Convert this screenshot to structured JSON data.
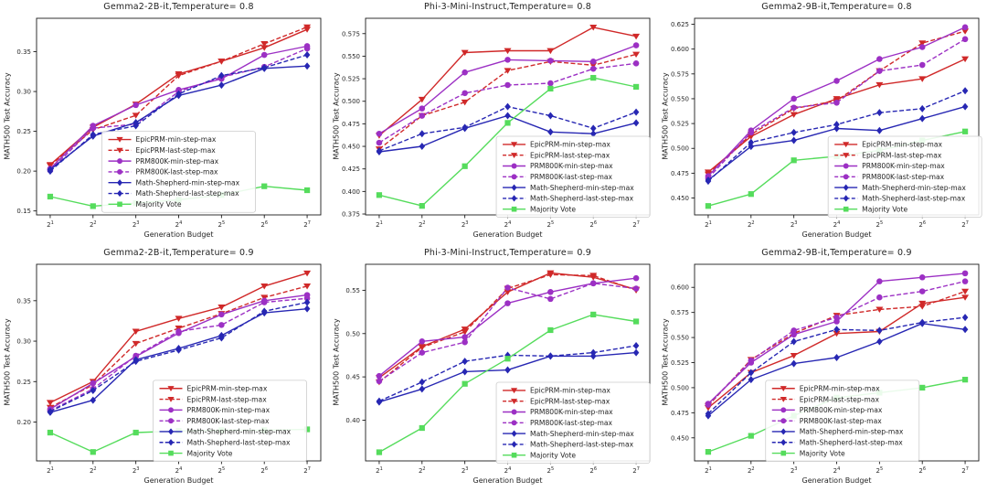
{
  "figure": {
    "xlabel": "Generation Budget",
    "ylabel": "MATH500 Test Accuracy",
    "x_tick_base": "2",
    "x_exponents": [
      1,
      2,
      3,
      4,
      5,
      6,
      7
    ],
    "colors": {
      "red": "#d02929",
      "purple": "#9c30c4",
      "blue": "#2727b3",
      "green": "#55dc5c",
      "axis": "#1a1a1a",
      "text": "#262626",
      "legend_border": "#cccccc",
      "background": "#ffffff"
    },
    "series_styles": [
      {
        "name": "EpicPRM-min-step-max",
        "color": "red",
        "dash": "solid",
        "marker": "triangle-down"
      },
      {
        "name": "EpicPRM-last-step-max",
        "color": "red",
        "dash": "dashed",
        "marker": "triangle-down"
      },
      {
        "name": "PRM800K-min-step-max",
        "color": "purple",
        "dash": "solid",
        "marker": "circle"
      },
      {
        "name": "PRM800K-last-step-max",
        "color": "purple",
        "dash": "dashed",
        "marker": "circle"
      },
      {
        "name": "Math-Shepherd-min-step-max",
        "color": "blue",
        "dash": "solid",
        "marker": "diamond"
      },
      {
        "name": "Math-Shepherd-last-step-max",
        "color": "blue",
        "dash": "dashed",
        "marker": "diamond"
      },
      {
        "name": "Majority Vote",
        "color": "green",
        "dash": "solid",
        "marker": "square"
      }
    ]
  },
  "chart_data": [
    {
      "type": "line",
      "title": "Gemma2-2B-it,Temperature= 0.8",
      "xlabel": "Generation Budget",
      "ylabel": "MATH500 Test Accuracy",
      "x": [
        2,
        4,
        8,
        16,
        32,
        64,
        128
      ],
      "ylim": [
        0.145,
        0.392
      ],
      "yticks": [
        0.15,
        0.2,
        0.25,
        0.3,
        0.35
      ],
      "ydecimals": 2,
      "legend_pos": {
        "x": 0.23,
        "y": 0.575
      },
      "series_values": [
        [
          0.208,
          0.255,
          0.284,
          0.322,
          0.338,
          0.355,
          0.378
        ],
        [
          0.207,
          0.252,
          0.27,
          0.32,
          0.338,
          0.36,
          0.381
        ],
        [
          0.203,
          0.257,
          0.283,
          0.302,
          0.316,
          0.346,
          0.357
        ],
        [
          0.201,
          0.254,
          0.259,
          0.3,
          0.318,
          0.331,
          0.354
        ],
        [
          0.202,
          0.244,
          0.261,
          0.295,
          0.308,
          0.329,
          0.332
        ],
        [
          0.2,
          0.246,
          0.257,
          0.297,
          0.32,
          0.33,
          0.346
        ],
        [
          0.168,
          0.156,
          0.16,
          0.164,
          0.17,
          0.181,
          0.176
        ]
      ]
    },
    {
      "type": "line",
      "title": "Phi-3-Mini-Instruct,Temperature= 0.8",
      "xlabel": "Generation Budget",
      "ylabel": "MATH500 Test Accuracy",
      "x": [
        2,
        4,
        8,
        16,
        32,
        64,
        128
      ],
      "ylim": [
        0.374,
        0.592
      ],
      "yticks": [
        0.375,
        0.4,
        0.425,
        0.45,
        0.475,
        0.5,
        0.525,
        0.55,
        0.575
      ],
      "ydecimals": 3,
      "legend_pos": {
        "x": 0.46,
        "y": 0.6
      },
      "series_values": [
        [
          0.462,
          0.502,
          0.554,
          0.556,
          0.556,
          0.582,
          0.572
        ],
        [
          0.447,
          0.484,
          0.499,
          0.534,
          0.544,
          0.54,
          0.552
        ],
        [
          0.464,
          0.492,
          0.532,
          0.546,
          0.545,
          0.544,
          0.562
        ],
        [
          0.454,
          0.484,
          0.509,
          0.518,
          0.52,
          0.536,
          0.542
        ],
        [
          0.444,
          0.45,
          0.47,
          0.484,
          0.466,
          0.464,
          0.476
        ],
        [
          0.445,
          0.464,
          0.471,
          0.494,
          0.484,
          0.47,
          0.488
        ],
        [
          0.396,
          0.384,
          0.428,
          0.476,
          0.514,
          0.526,
          0.516
        ]
      ]
    },
    {
      "type": "line",
      "title": "Gemma2-9B-it,Temperature= 0.8",
      "xlabel": "Generation Budget",
      "ylabel": "MATH500 Test Accuracy",
      "x": [
        2,
        4,
        8,
        16,
        32,
        64,
        128
      ],
      "ylim": [
        0.433,
        0.631
      ],
      "yticks": [
        0.45,
        0.475,
        0.5,
        0.525,
        0.55,
        0.575,
        0.6,
        0.625
      ],
      "ydecimals": 3,
      "legend_pos": {
        "x": 0.47,
        "y": 0.6
      },
      "series_values": [
        [
          0.476,
          0.512,
          0.534,
          0.55,
          0.564,
          0.57,
          0.59
        ],
        [
          0.474,
          0.514,
          0.54,
          0.548,
          0.578,
          0.606,
          0.618
        ],
        [
          0.472,
          0.518,
          0.55,
          0.568,
          0.59,
          0.602,
          0.622
        ],
        [
          0.47,
          0.516,
          0.541,
          0.546,
          0.578,
          0.584,
          0.61
        ],
        [
          0.468,
          0.502,
          0.508,
          0.52,
          0.518,
          0.53,
          0.542
        ],
        [
          0.467,
          0.506,
          0.516,
          0.524,
          0.536,
          0.54,
          0.558
        ],
        [
          0.442,
          0.454,
          0.488,
          0.492,
          0.498,
          0.508,
          0.517
        ]
      ]
    },
    {
      "type": "line",
      "title": "Gemma2-2B-it,Temperature= 0.9",
      "xlabel": "Generation Budget",
      "ylabel": "MATH500 Test Accuracy",
      "x": [
        2,
        4,
        8,
        16,
        32,
        64,
        128
      ],
      "ylim": [
        0.152,
        0.395
      ],
      "yticks": [
        0.2,
        0.25,
        0.3,
        0.35
      ],
      "ydecimals": 2,
      "legend_pos": {
        "x": 0.41,
        "y": 0.59
      },
      "series_values": [
        [
          0.224,
          0.25,
          0.312,
          0.328,
          0.342,
          0.368,
          0.384
        ],
        [
          0.218,
          0.246,
          0.297,
          0.316,
          0.334,
          0.354,
          0.368
        ],
        [
          0.216,
          0.248,
          0.281,
          0.31,
          0.333,
          0.35,
          0.357
        ],
        [
          0.214,
          0.241,
          0.282,
          0.312,
          0.32,
          0.348,
          0.353
        ],
        [
          0.212,
          0.227,
          0.277,
          0.291,
          0.307,
          0.335,
          0.34
        ],
        [
          0.213,
          0.239,
          0.275,
          0.289,
          0.304,
          0.337,
          0.348
        ],
        [
          0.187,
          0.163,
          0.187,
          0.189,
          0.19,
          0.19,
          0.191
        ]
      ]
    },
    {
      "type": "line",
      "title": "Phi-3-Mini-Instruct,Temperature= 0.9",
      "xlabel": "Generation Budget",
      "ylabel": "MATH500 Test Accuracy",
      "x": [
        2,
        4,
        8,
        16,
        32,
        64,
        128
      ],
      "ylim": [
        0.353,
        0.58
      ],
      "yticks": [
        0.4,
        0.45,
        0.5,
        0.55
      ],
      "ydecimals": 2,
      "legend_pos": {
        "x": 0.46,
        "y": 0.6
      },
      "series_values": [
        [
          0.449,
          0.485,
          0.505,
          0.548,
          0.57,
          0.565,
          0.551
        ],
        [
          0.444,
          0.484,
          0.502,
          0.552,
          0.568,
          0.567,
          0.55
        ],
        [
          0.451,
          0.491,
          0.496,
          0.535,
          0.548,
          0.558,
          0.564
        ],
        [
          0.445,
          0.478,
          0.49,
          0.553,
          0.54,
          0.558,
          0.552
        ],
        [
          0.421,
          0.436,
          0.456,
          0.458,
          0.474,
          0.474,
          0.478
        ],
        [
          0.422,
          0.444,
          0.468,
          0.475,
          0.474,
          0.478,
          0.486
        ],
        [
          0.363,
          0.391,
          0.442,
          0.471,
          0.504,
          0.522,
          0.514
        ]
      ]
    },
    {
      "type": "line",
      "title": "Gemma2-9B-it,Temperature= 0.9",
      "xlabel": "Generation Budget",
      "ylabel": "MATH500 Test Accuracy",
      "x": [
        2,
        4,
        8,
        16,
        32,
        64,
        128
      ],
      "ylim": [
        0.427,
        0.623
      ],
      "yticks": [
        0.45,
        0.475,
        0.5,
        0.525,
        0.55,
        0.575,
        0.6
      ],
      "ydecimals": 3,
      "legend_pos": {
        "x": 0.25,
        "y": 0.59
      },
      "series_values": [
        [
          0.48,
          0.515,
          0.532,
          0.554,
          0.556,
          0.584,
          0.59
        ],
        [
          0.482,
          0.528,
          0.554,
          0.572,
          0.578,
          0.581,
          0.596
        ],
        [
          0.484,
          0.525,
          0.553,
          0.566,
          0.606,
          0.61,
          0.614
        ],
        [
          0.483,
          0.527,
          0.557,
          0.57,
          0.59,
          0.596,
          0.606
        ],
        [
          0.472,
          0.508,
          0.524,
          0.53,
          0.546,
          0.564,
          0.558
        ],
        [
          0.474,
          0.515,
          0.546,
          0.558,
          0.557,
          0.565,
          0.57
        ],
        [
          0.436,
          0.452,
          0.472,
          0.49,
          0.495,
          0.5,
          0.508
        ]
      ]
    }
  ]
}
